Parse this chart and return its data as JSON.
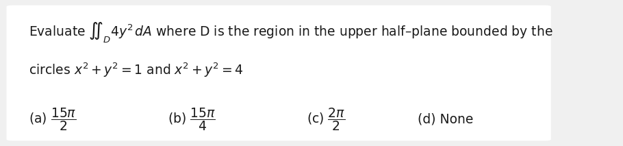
{
  "bg_color": "#f0f0f0",
  "box_color": "#ffffff",
  "line1": "Evaluate $\\iint_D 4y^2\\, dA$ where D is the region in the upper half–plane bounded by the",
  "line2": "circles $x^2 + y^2 = 1$ and $x^2 + y^2 = 4$",
  "options": [
    {
      "label": "(a)",
      "value": "$\\dfrac{15\\pi}{2}$"
    },
    {
      "label": "(b)",
      "value": "$\\dfrac{15\\pi}{4}$"
    },
    {
      "label": "(c)",
      "value": "$\\dfrac{2\\pi}{2}$"
    },
    {
      "label": "(d)",
      "value": "None"
    }
  ],
  "text_color": "#1a1a1a",
  "fontsize_main": 13.5,
  "fontsize_options": 13.5
}
